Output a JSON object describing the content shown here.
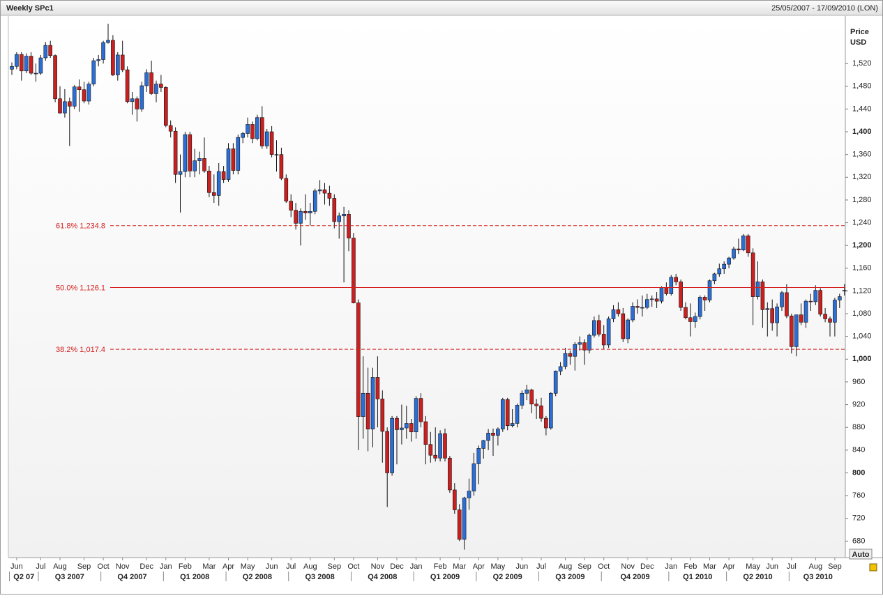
{
  "chart_data": {
    "type": "candlestick",
    "title": "Weekly SPc1",
    "date_range": "25/05/2007 - 17/09/2010 (LON)",
    "y_label": [
      "Price",
      "USD"
    ],
    "auto_button": "Auto",
    "up_color": "#2b6fd6",
    "down_color": "#cc1f1f",
    "grid": false,
    "ylim": [
      651,
      1595
    ],
    "yticks": [
      680,
      720,
      760,
      800,
      840,
      880,
      920,
      960,
      {
        "value": 1000,
        "label": "1,000"
      },
      {
        "value": 1040,
        "label": "1,040"
      },
      {
        "value": 1080,
        "label": "1,080"
      },
      {
        "value": 1120,
        "label": "1,120"
      },
      {
        "value": 1160,
        "label": "1,160"
      },
      {
        "value": 1200,
        "label": "1,200"
      },
      {
        "value": 1240,
        "label": "1,240"
      },
      {
        "value": 1280,
        "label": "1,280"
      },
      {
        "value": 1320,
        "label": "1,320"
      },
      {
        "value": 1360,
        "label": "1,360"
      },
      {
        "value": 1400,
        "label": "1,400"
      },
      {
        "value": 1440,
        "label": "1,440"
      },
      {
        "value": 1480,
        "label": "1,480"
      },
      {
        "value": 1520,
        "label": "1,520"
      }
    ],
    "xticks": [
      {
        "value": 1,
        "label": "Jun"
      },
      {
        "value": 6,
        "label": "Jul"
      },
      {
        "value": 10,
        "label": "Aug"
      },
      {
        "value": 15,
        "label": "Sep"
      },
      {
        "value": 19,
        "label": "Oct"
      },
      {
        "value": 23,
        "label": "Nov"
      },
      {
        "value": 28,
        "label": "Dec"
      },
      {
        "value": 32,
        "label": "Jan"
      },
      {
        "value": 36,
        "label": "Feb"
      },
      {
        "value": 41,
        "label": "Mar"
      },
      {
        "value": 45,
        "label": "Apr"
      },
      {
        "value": 49,
        "label": "May"
      },
      {
        "value": 54,
        "label": "Jun"
      },
      {
        "value": 58,
        "label": "Jul"
      },
      {
        "value": 62,
        "label": "Aug"
      },
      {
        "value": 67,
        "label": "Sep"
      },
      {
        "value": 71,
        "label": "Oct"
      },
      {
        "value": 76,
        "label": "Nov"
      },
      {
        "value": 80,
        "label": "Dec"
      },
      {
        "value": 84,
        "label": "Jan"
      },
      {
        "value": 89,
        "label": "Feb"
      },
      {
        "value": 93,
        "label": "Mar"
      },
      {
        "value": 97,
        "label": "Apr"
      },
      {
        "value": 101,
        "label": "May"
      },
      {
        "value": 106,
        "label": "Jun"
      },
      {
        "value": 110,
        "label": "Jul"
      },
      {
        "value": 115,
        "label": "Aug"
      },
      {
        "value": 119,
        "label": "Sep"
      },
      {
        "value": 123,
        "label": "Oct"
      },
      {
        "value": 128,
        "label": "Nov"
      },
      {
        "value": 132,
        "label": "Dec"
      },
      {
        "value": 137,
        "label": "Jan"
      },
      {
        "value": 141,
        "label": "Feb"
      },
      {
        "value": 145,
        "label": "Mar"
      },
      {
        "value": 149,
        "label": "Apr"
      },
      {
        "value": 154,
        "label": "May"
      },
      {
        "value": 158,
        "label": "Jun"
      },
      {
        "value": 162,
        "label": "Jul"
      },
      {
        "value": 167,
        "label": "Aug"
      },
      {
        "value": 171,
        "label": "Sep"
      }
    ],
    "quarter_ticks": [
      {
        "value": 0,
        "label": "Q2 07"
      },
      {
        "value": 6,
        "label": "Q3 2007"
      },
      {
        "value": 19,
        "label": "Q4 2007"
      },
      {
        "value": 32,
        "label": "Q1 2008"
      },
      {
        "value": 45,
        "label": "Q2 2008"
      },
      {
        "value": 58,
        "label": "Q3 2008"
      },
      {
        "value": 71,
        "label": "Q4 2008"
      },
      {
        "value": 84,
        "label": "Q1 2009"
      },
      {
        "value": 97,
        "label": "Q2 2009"
      },
      {
        "value": 110,
        "label": "Q3 2009"
      },
      {
        "value": 123,
        "label": "Q4 2009"
      },
      {
        "value": 137,
        "label": "Q1 2010"
      },
      {
        "value": 149,
        "label": "Q2 2010"
      },
      {
        "value": 162,
        "label": "Q3 2010"
      }
    ],
    "levels": [
      {
        "value": 1234.8,
        "label": "61.8% 1,234.8",
        "dashed": true,
        "color": "#d42020"
      },
      {
        "value": 1126.1,
        "label": "50.0% 1,126.1",
        "dashed": false,
        "color": "#d42020"
      },
      {
        "value": 1017.4,
        "label": "38.2% 1,017.4",
        "dashed": true,
        "color": "#d42020"
      }
    ],
    "ohlc": [
      [
        1510,
        1522,
        1500,
        1515
      ],
      [
        1515,
        1540,
        1510,
        1536
      ],
      [
        1536,
        1540,
        1490,
        1507
      ],
      [
        1507,
        1538,
        1503,
        1533
      ],
      [
        1533,
        1540,
        1500,
        1503
      ],
      [
        1503,
        1520,
        1488,
        1503
      ],
      [
        1503,
        1535,
        1500,
        1530
      ],
      [
        1530,
        1558,
        1525,
        1552
      ],
      [
        1552,
        1560,
        1530,
        1534
      ],
      [
        1534,
        1536,
        1452,
        1458
      ],
      [
        1458,
        1480,
        1432,
        1433
      ],
      [
        1433,
        1475,
        1425,
        1453
      ],
      [
        1453,
        1460,
        1375,
        1445
      ],
      [
        1445,
        1482,
        1440,
        1479
      ],
      [
        1479,
        1492,
        1435,
        1474
      ],
      [
        1474,
        1488,
        1450,
        1454
      ],
      [
        1454,
        1488,
        1448,
        1484
      ],
      [
        1484,
        1530,
        1480,
        1525
      ],
      [
        1525,
        1535,
        1515,
        1527
      ],
      [
        1527,
        1560,
        1520,
        1557
      ],
      [
        1557,
        1590,
        1555,
        1561
      ],
      [
        1561,
        1570,
        1498,
        1500
      ],
      [
        1500,
        1540,
        1490,
        1535
      ],
      [
        1535,
        1560,
        1505,
        1509
      ],
      [
        1509,
        1515,
        1450,
        1453
      ],
      [
        1453,
        1470,
        1430,
        1458
      ],
      [
        1458,
        1462,
        1418,
        1440
      ],
      [
        1440,
        1488,
        1435,
        1481
      ],
      [
        1481,
        1510,
        1470,
        1504
      ],
      [
        1504,
        1525,
        1465,
        1467
      ],
      [
        1467,
        1490,
        1452,
        1484
      ],
      [
        1484,
        1500,
        1470,
        1478
      ],
      [
        1478,
        1480,
        1408,
        1411
      ],
      [
        1411,
        1420,
        1390,
        1401
      ],
      [
        1401,
        1408,
        1310,
        1325
      ],
      [
        1325,
        1360,
        1258,
        1330
      ],
      [
        1330,
        1400,
        1320,
        1395
      ],
      [
        1395,
        1400,
        1320,
        1331
      ],
      [
        1331,
        1370,
        1320,
        1349
      ],
      [
        1349,
        1365,
        1325,
        1353
      ],
      [
        1353,
        1390,
        1328,
        1331
      ],
      [
        1331,
        1340,
        1285,
        1293
      ],
      [
        1293,
        1325,
        1275,
        1288
      ],
      [
        1288,
        1345,
        1270,
        1330
      ],
      [
        1330,
        1340,
        1310,
        1316
      ],
      [
        1316,
        1380,
        1312,
        1370
      ],
      [
        1370,
        1380,
        1325,
        1332
      ],
      [
        1332,
        1395,
        1325,
        1390
      ],
      [
        1390,
        1400,
        1380,
        1397
      ],
      [
        1397,
        1425,
        1390,
        1413
      ],
      [
        1413,
        1418,
        1380,
        1388
      ],
      [
        1388,
        1430,
        1385,
        1425
      ],
      [
        1425,
        1445,
        1370,
        1375
      ],
      [
        1375,
        1405,
        1370,
        1400
      ],
      [
        1400,
        1410,
        1355,
        1360
      ],
      [
        1360,
        1385,
        1330,
        1360
      ],
      [
        1360,
        1372,
        1315,
        1318
      ],
      [
        1318,
        1325,
        1275,
        1278
      ],
      [
        1278,
        1290,
        1250,
        1262
      ],
      [
        1262,
        1275,
        1228,
        1239
      ],
      [
        1239,
        1265,
        1200,
        1260
      ],
      [
        1260,
        1290,
        1245,
        1257
      ],
      [
        1257,
        1275,
        1235,
        1260
      ],
      [
        1260,
        1300,
        1255,
        1296
      ],
      [
        1296,
        1315,
        1290,
        1298
      ],
      [
        1298,
        1310,
        1272,
        1292
      ],
      [
        1292,
        1305,
        1270,
        1283
      ],
      [
        1283,
        1290,
        1230,
        1242
      ],
      [
        1242,
        1258,
        1212,
        1252
      ],
      [
        1252,
        1268,
        1135,
        1255
      ],
      [
        1255,
        1262,
        1190,
        1213
      ],
      [
        1213,
        1222,
        1098,
        1099
      ],
      [
        1099,
        1105,
        840,
        899
      ],
      [
        899,
        1005,
        860,
        940
      ],
      [
        940,
        985,
        838,
        877
      ],
      [
        877,
        985,
        845,
        968
      ],
      [
        968,
        1005,
        880,
        930
      ],
      [
        930,
        945,
        818,
        873
      ],
      [
        873,
        880,
        740,
        800
      ],
      [
        800,
        900,
        795,
        896
      ],
      [
        896,
        900,
        815,
        876
      ],
      [
        876,
        920,
        850,
        879
      ],
      [
        879,
        918,
        860,
        887
      ],
      [
        887,
        895,
        855,
        872
      ],
      [
        872,
        935,
        860,
        931
      ],
      [
        931,
        940,
        880,
        890
      ],
      [
        890,
        900,
        815,
        850
      ],
      [
        850,
        872,
        818,
        831
      ],
      [
        831,
        880,
        820,
        826
      ],
      [
        826,
        875,
        820,
        869
      ],
      [
        869,
        878,
        820,
        826
      ],
      [
        826,
        830,
        765,
        770
      ],
      [
        770,
        782,
        728,
        735
      ],
      [
        735,
        745,
        680,
        683
      ],
      [
        683,
        758,
        665,
        756
      ],
      [
        756,
        790,
        735,
        768
      ],
      [
        768,
        835,
        760,
        816
      ],
      [
        816,
        848,
        780,
        843
      ],
      [
        843,
        858,
        825,
        857
      ],
      [
        857,
        877,
        840,
        870
      ],
      [
        870,
        878,
        830,
        866
      ],
      [
        866,
        880,
        848,
        877
      ],
      [
        877,
        932,
        872,
        929
      ],
      [
        929,
        932,
        875,
        883
      ],
      [
        883,
        912,
        880,
        887
      ],
      [
        887,
        922,
        880,
        919
      ],
      [
        919,
        945,
        912,
        940
      ],
      [
        940,
        955,
        928,
        946
      ],
      [
        946,
        948,
        905,
        921
      ],
      [
        921,
        930,
        895,
        918
      ],
      [
        918,
        932,
        890,
        896
      ],
      [
        896,
        900,
        866,
        879
      ],
      [
        879,
        942,
        876,
        940
      ],
      [
        940,
        980,
        935,
        979
      ],
      [
        979,
        995,
        972,
        987
      ],
      [
        987,
        1020,
        982,
        1010
      ],
      [
        1010,
        1015,
        990,
        1005
      ],
      [
        1005,
        1030,
        980,
        1026
      ],
      [
        1026,
        1040,
        1015,
        1029
      ],
      [
        1029,
        1035,
        990,
        1016
      ],
      [
        1016,
        1045,
        1010,
        1042
      ],
      [
        1042,
        1075,
        1038,
        1068
      ],
      [
        1068,
        1078,
        1040,
        1044
      ],
      [
        1044,
        1060,
        1018,
        1025
      ],
      [
        1025,
        1075,
        1020,
        1071
      ],
      [
        1071,
        1095,
        1065,
        1087
      ],
      [
        1087,
        1100,
        1075,
        1080
      ],
      [
        1080,
        1090,
        1030,
        1036
      ],
      [
        1036,
        1072,
        1028,
        1069
      ],
      [
        1069,
        1100,
        1065,
        1093
      ],
      [
        1093,
        1105,
        1080,
        1091
      ],
      [
        1091,
        1112,
        1075,
        1091
      ],
      [
        1091,
        1115,
        1088,
        1105
      ],
      [
        1105,
        1112,
        1092,
        1106
      ],
      [
        1106,
        1118,
        1090,
        1102
      ],
      [
        1102,
        1128,
        1098,
        1126
      ],
      [
        1126,
        1135,
        1112,
        1115
      ],
      [
        1115,
        1148,
        1112,
        1144
      ],
      [
        1144,
        1150,
        1130,
        1136
      ],
      [
        1136,
        1140,
        1085,
        1091
      ],
      [
        1091,
        1100,
        1070,
        1073
      ],
      [
        1073,
        1098,
        1040,
        1066
      ],
      [
        1066,
        1082,
        1055,
        1075
      ],
      [
        1075,
        1112,
        1070,
        1109
      ],
      [
        1109,
        1112,
        1085,
        1104
      ],
      [
        1104,
        1140,
        1100,
        1138
      ],
      [
        1138,
        1152,
        1132,
        1150
      ],
      [
        1150,
        1168,
        1145,
        1159
      ],
      [
        1159,
        1172,
        1150,
        1167
      ],
      [
        1167,
        1180,
        1160,
        1178
      ],
      [
        1178,
        1198,
        1175,
        1194
      ],
      [
        1194,
        1212,
        1185,
        1192
      ],
      [
        1192,
        1220,
        1190,
        1217
      ],
      [
        1217,
        1220,
        1180,
        1187
      ],
      [
        1187,
        1195,
        1060,
        1110
      ],
      [
        1110,
        1172,
        1105,
        1136
      ],
      [
        1136,
        1140,
        1055,
        1087
      ],
      [
        1087,
        1100,
        1040,
        1089
      ],
      [
        1089,
        1105,
        1050,
        1064
      ],
      [
        1064,
        1098,
        1040,
        1092
      ],
      [
        1092,
        1120,
        1085,
        1117
      ],
      [
        1117,
        1132,
        1072,
        1076
      ],
      [
        1076,
        1080,
        1010,
        1022
      ],
      [
        1022,
        1078,
        1005,
        1078
      ],
      [
        1078,
        1098,
        1060,
        1065
      ],
      [
        1065,
        1105,
        1055,
        1102
      ],
      [
        1102,
        1115,
        1085,
        1101
      ],
      [
        1101,
        1130,
        1095,
        1121
      ],
      [
        1121,
        1125,
        1075,
        1079
      ],
      [
        1079,
        1090,
        1065,
        1071
      ],
      [
        1071,
        1075,
        1040,
        1065
      ],
      [
        1065,
        1108,
        1040,
        1104
      ],
      [
        1104,
        1115,
        1090,
        1110
      ],
      [
        1120,
        1132,
        1112,
        1121
      ]
    ]
  }
}
